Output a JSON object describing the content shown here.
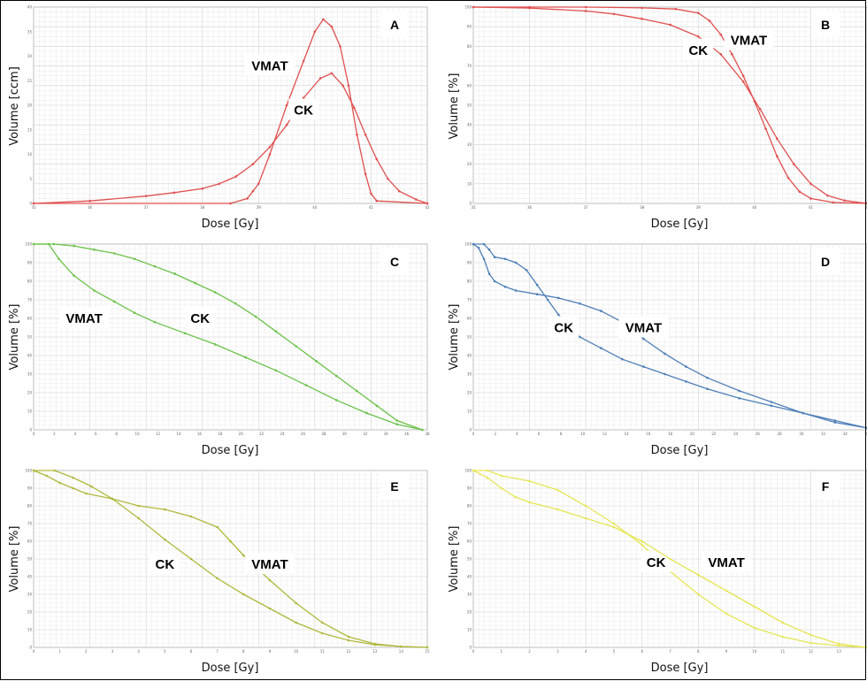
{
  "chart_data": [
    {
      "panel": "A",
      "type": "line",
      "xlabel": "Dose [Gy]",
      "ylabel": "Volume [ccm]",
      "xlim": [
        35,
        42
      ],
      "ylim": [
        0,
        40
      ],
      "x_ticks": [
        "35",
        "36",
        "37",
        "38",
        "39",
        "40",
        "41",
        "42"
      ],
      "y_ticks": [
        "0",
        "5",
        "10",
        "15",
        "20",
        "25",
        "30",
        "35",
        "40"
      ],
      "color": "#e05050",
      "series": [
        {
          "name": "VMAT",
          "label_pos": [
            39.2,
            28.0
          ],
          "x": [
            35,
            38.5,
            38.8,
            38.9,
            39.0,
            39.2,
            39.5,
            39.8,
            40.0,
            40.15,
            40.3,
            40.45,
            40.6,
            40.75,
            40.9,
            41.0,
            41.1,
            42
          ],
          "y": [
            0,
            0,
            1.0,
            2.5,
            4.0,
            10,
            20,
            29,
            35,
            37.5,
            36,
            32,
            24,
            14,
            6,
            2,
            0.5,
            0
          ]
        },
        {
          "name": "CK",
          "label_pos": [
            39.8,
            19.0
          ],
          "x": [
            35,
            36,
            37,
            37.5,
            38,
            38.3,
            38.6,
            38.9,
            39.2,
            39.5,
            39.8,
            40.1,
            40.3,
            40.5,
            40.7,
            40.9,
            41.1,
            41.3,
            41.5,
            41.8,
            42
          ],
          "y": [
            0,
            0.5,
            1.5,
            2.2,
            3.0,
            4.0,
            5.5,
            8.0,
            11.5,
            16.0,
            21.5,
            25.5,
            26.5,
            24.0,
            19.5,
            14.0,
            9.0,
            5.0,
            2.5,
            0.8,
            0
          ]
        }
      ]
    },
    {
      "panel": "B",
      "type": "line",
      "xlabel": "Dose [Gy]",
      "ylabel": "Volume [%]",
      "xlim": [
        35,
        42
      ],
      "ylim": [
        0,
        100
      ],
      "x_ticks": [
        "35",
        "36",
        "37",
        "38",
        "39",
        "40",
        "41",
        "42"
      ],
      "y_ticks": [
        "0",
        "10",
        "20",
        "30",
        "40",
        "50",
        "60",
        "70",
        "80",
        "90",
        "100"
      ],
      "color": "#e05050",
      "series": [
        {
          "name": "VMAT",
          "label_pos": [
            39.9,
            83.0
          ],
          "x": [
            35,
            36,
            37,
            38,
            38.6,
            39.0,
            39.2,
            39.4,
            39.6,
            39.8,
            40.0,
            40.2,
            40.4,
            40.6,
            40.8,
            41.0,
            41.4,
            42
          ],
          "y": [
            100,
            100,
            100,
            99.6,
            99.0,
            97.0,
            93.0,
            86.0,
            76.0,
            65.0,
            52.0,
            38.0,
            24.0,
            13.0,
            6.0,
            2.5,
            0.5,
            0
          ]
        },
        {
          "name": "CK",
          "label_pos": [
            39.0,
            78.0
          ],
          "x": [
            35,
            36,
            37,
            37.5,
            38,
            38.5,
            39.0,
            39.4,
            39.8,
            40.1,
            40.4,
            40.7,
            41.0,
            41.3,
            41.6,
            42
          ],
          "y": [
            100,
            99.5,
            98.0,
            96.5,
            94.0,
            91.0,
            85.0,
            76.0,
            62.0,
            48.0,
            33.0,
            20.0,
            10.0,
            4.0,
            1.5,
            0
          ]
        }
      ]
    },
    {
      "panel": "C",
      "type": "line",
      "xlabel": "Dose [Gy]",
      "ylabel": "Volume [%]",
      "xlim": [
        0,
        39
      ],
      "ylim": [
        0,
        100
      ],
      "x_ticks": [
        "0",
        "2",
        "4",
        "6",
        "8",
        "10",
        "12",
        "14",
        "16",
        "18",
        "20",
        "22",
        "24",
        "26",
        "28",
        "30",
        "32",
        "34",
        "36",
        "38"
      ],
      "y_ticks": [
        "0",
        "10",
        "20",
        "30",
        "40",
        "50",
        "60",
        "70",
        "80",
        "90",
        "100"
      ],
      "color": "#6bc24a",
      "series": [
        {
          "name": "VMAT",
          "label_pos": [
            5.0,
            60.0
          ],
          "x": [
            0,
            1.5,
            2.5,
            4,
            6,
            8,
            10,
            12,
            15,
            18,
            21,
            24,
            27,
            30,
            33,
            36,
            38.5
          ],
          "y": [
            100,
            100,
            92,
            83,
            75,
            69,
            63,
            58,
            52,
            46,
            39,
            32,
            24,
            16,
            9,
            3,
            0
          ]
        },
        {
          "name": "CK",
          "label_pos": [
            16.5,
            60.0
          ],
          "x": [
            0,
            2,
            4,
            6,
            8,
            10,
            12,
            14,
            16,
            18,
            20,
            22,
            24,
            26,
            28,
            30,
            32,
            34,
            36,
            38.5
          ],
          "y": [
            100,
            100,
            99,
            97,
            95,
            92,
            88,
            84,
            79,
            74,
            68,
            61,
            53,
            45,
            37,
            29,
            21,
            13,
            5,
            0
          ]
        }
      ]
    },
    {
      "panel": "D",
      "type": "line",
      "xlabel": "Dose [Gy]",
      "ylabel": "Volume [%]",
      "xlim": [
        0,
        37
      ],
      "ylim": [
        0,
        100
      ],
      "x_ticks": [
        "0",
        "2",
        "4",
        "6",
        "8",
        "10",
        "12",
        "14",
        "16",
        "18",
        "20",
        "22",
        "24",
        "26",
        "28",
        "30",
        "32",
        "34",
        "36"
      ],
      "y_ticks": [
        "0",
        "10",
        "20",
        "30",
        "40",
        "50",
        "60",
        "70",
        "80",
        "90",
        "100"
      ],
      "color": "#4f7fb8",
      "series": [
        {
          "name": "CK",
          "label_pos": [
            8.5,
            55.0
          ],
          "x": [
            0,
            1,
            1.5,
            2,
            3,
            4,
            5,
            6,
            7,
            8,
            9,
            10,
            12,
            14,
            16,
            18,
            20,
            22,
            25,
            28,
            31,
            34,
            37
          ],
          "y": [
            100,
            100,
            97,
            93,
            92,
            90,
            86,
            78,
            70,
            62,
            56,
            50,
            44,
            38,
            34,
            30,
            26,
            22,
            17,
            13,
            9,
            5,
            1
          ]
        },
        {
          "name": "VMAT",
          "label_pos": [
            16.0,
            55.0
          ],
          "x": [
            0,
            0.5,
            1,
            1.5,
            2,
            3,
            4,
            6,
            8,
            10,
            12,
            14,
            16,
            18,
            20,
            22,
            25,
            28,
            31,
            34,
            37
          ],
          "y": [
            100,
            98,
            92,
            84,
            80,
            77,
            75,
            73,
            71,
            68,
            64,
            58,
            49,
            41,
            34,
            28,
            21,
            15,
            9,
            4,
            1
          ]
        }
      ]
    },
    {
      "panel": "E",
      "type": "line",
      "xlabel": "Dose [Gy]",
      "ylabel": "Volume [%]",
      "xlim": [
        0,
        15
      ],
      "ylim": [
        0,
        100
      ],
      "x_ticks": [
        "0",
        "1",
        "2",
        "3",
        "4",
        "5",
        "6",
        "7",
        "8",
        "9",
        "10",
        "11",
        "12",
        "13",
        "14",
        "15"
      ],
      "y_ticks": [
        "0",
        "10",
        "20",
        "30",
        "40",
        "50",
        "60",
        "70",
        "80",
        "90",
        "100"
      ],
      "color": "#b0b83c",
      "series": [
        {
          "name": "CK",
          "label_pos": [
            5.0,
            47.0
          ],
          "x": [
            0,
            0.8,
            1.5,
            2.2,
            3,
            4,
            5,
            6,
            7,
            8,
            9,
            10,
            11,
            12,
            13,
            14,
            15
          ],
          "y": [
            100,
            100,
            96,
            91,
            84,
            73,
            61,
            50,
            39,
            30,
            22,
            14,
            8,
            4,
            1.5,
            0.5,
            0
          ]
        },
        {
          "name": "VMAT",
          "label_pos": [
            9.0,
            47.0
          ],
          "x": [
            0,
            0.5,
            1,
            1.5,
            2,
            3,
            4,
            5,
            6,
            7,
            7.5,
            8,
            9,
            10,
            11,
            12,
            13,
            14,
            15
          ],
          "y": [
            100,
            97,
            93,
            90,
            87,
            84,
            80,
            78,
            74,
            68,
            60,
            52,
            38,
            25,
            14,
            6,
            2,
            0.5,
            0
          ]
        }
      ]
    },
    {
      "panel": "F",
      "type": "line",
      "xlabel": "Dose [Gy]",
      "ylabel": "Volume [%]",
      "xlim": [
        0,
        14
      ],
      "ylim": [
        0,
        100
      ],
      "x_ticks": [
        "0",
        "1",
        "2",
        "3",
        "4",
        "5",
        "6",
        "7",
        "8",
        "9",
        "10",
        "11",
        "12",
        "13",
        "14"
      ],
      "y_ticks": [
        "0",
        "10",
        "20",
        "30",
        "40",
        "50",
        "60",
        "70",
        "80",
        "90",
        "100"
      ],
      "color": "#e6e655",
      "series": [
        {
          "name": "CK",
          "label_pos": [
            6.5,
            48.0
          ],
          "x": [
            0,
            0.5,
            1,
            2,
            3,
            4,
            5,
            6,
            7,
            8,
            9,
            10,
            11,
            12,
            13,
            14
          ],
          "y": [
            100,
            100,
            97,
            94,
            89,
            80,
            70,
            58,
            43,
            30,
            19,
            11,
            6,
            2.5,
            1,
            0
          ]
        },
        {
          "name": "VMAT",
          "label_pos": [
            9.0,
            48.0
          ],
          "x": [
            0,
            0.5,
            1,
            1.5,
            2,
            3,
            4,
            5,
            6,
            7,
            8,
            9,
            10,
            11,
            12,
            13,
            14
          ],
          "y": [
            100,
            96,
            90,
            85,
            82,
            78,
            73,
            68,
            60,
            50,
            41,
            32,
            23,
            14,
            7,
            2,
            0
          ]
        }
      ]
    }
  ]
}
